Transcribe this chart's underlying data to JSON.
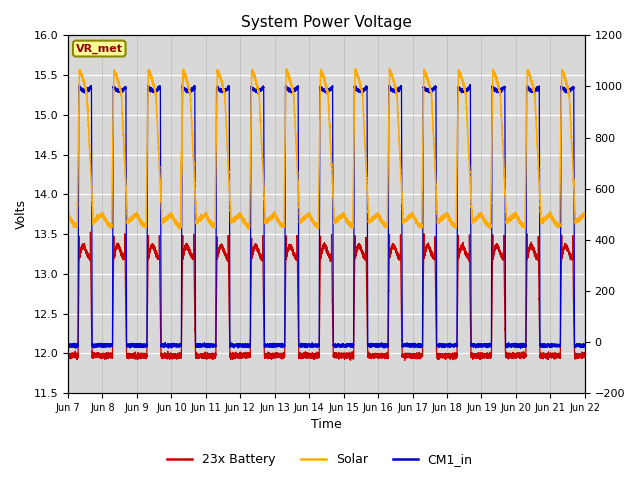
{
  "title": "System Power Voltage",
  "xlabel": "Time",
  "ylabel_left": "Volts",
  "ylabel_right": "",
  "ylim_left": [
    11.5,
    16.0
  ],
  "ylim_right": [
    -200,
    1200
  ],
  "num_days": 15,
  "colors": {
    "battery": "#cc0000",
    "solar": "#ffaa00",
    "cm1": "#0000cc"
  },
  "legend_labels": [
    "23x Battery",
    "Solar",
    "CM1_in"
  ],
  "annotation_text": "VR_met",
  "annotation_box_color": "#ffff99",
  "annotation_box_edge": "#888800",
  "background_color": "#ffffff",
  "plot_bg_color": "#d8d8d8",
  "grid_color": "#ffffff",
  "tick_labels": [
    "Jun 7",
    "Jun 8",
    "Jun 9",
    "Jun 10",
    "Jun 11",
    "Jun 12",
    "Jun 13",
    "Jun 14",
    "Jun 15",
    "Jun 16",
    "Jun 17",
    "Jun 18",
    "Jun 19",
    "Jun 20",
    "Jun 21",
    "Jun 22"
  ]
}
